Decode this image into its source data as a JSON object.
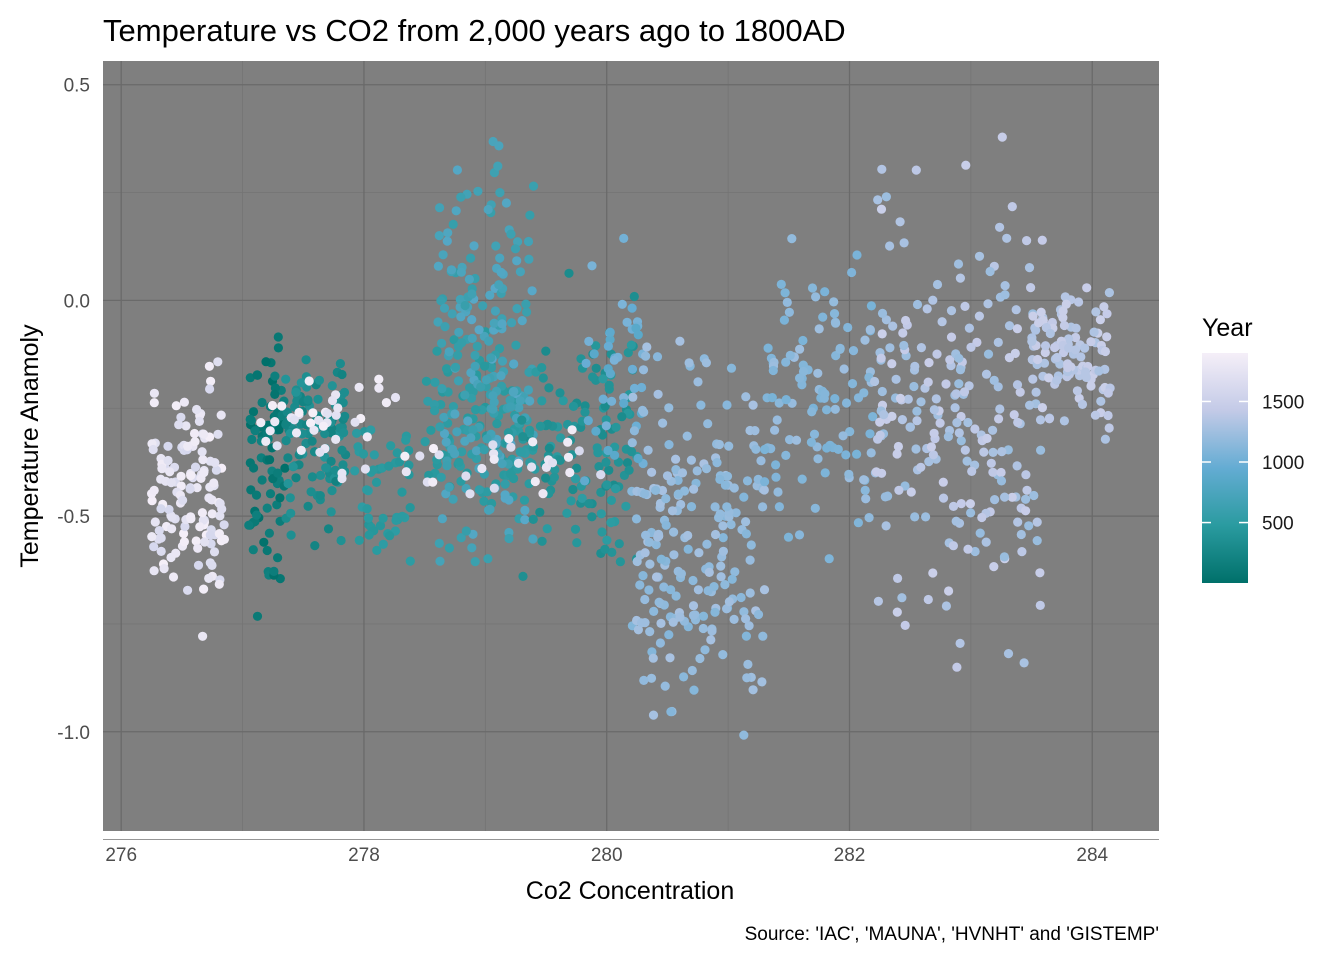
{
  "chart_data": {
    "type": "scatter",
    "title": "Temperature vs CO2 from 2,000 years ago to 1800AD",
    "xlabel": "Co2 Concentration",
    "ylabel": "Temperature Anamoly",
    "caption": "Source: 'IAC', 'MAUNA', 'HVNHT' and 'GISTEMP'",
    "xlim": [
      275.85,
      284.55
    ],
    "ylim": [
      -1.23,
      0.555
    ],
    "x_ticks": [
      276,
      278,
      280,
      282,
      284
    ],
    "x_tick_labels": [
      "276",
      "278",
      "280",
      "282",
      "284"
    ],
    "y_ticks": [
      0.5,
      0.0,
      -0.5,
      -1.0
    ],
    "y_tick_labels": [
      "0.5",
      "0.0",
      "-0.5",
      "-1.0"
    ],
    "grid": true,
    "panel_background": "#7f7f7f",
    "legend": {
      "title": "Year",
      "position": "right",
      "type": "colorbar",
      "range": [
        1,
        1900
      ],
      "breaks": [
        500,
        1000,
        1500
      ],
      "break_labels": [
        "500",
        "1000",
        "1500"
      ],
      "colors": [
        "#00706a",
        "#2a9ba0",
        "#64acd3",
        "#c3cae7",
        "#f5eff8"
      ]
    },
    "clusters": [
      {
        "year": [
          0,
          200
        ],
        "x": [
          277.05,
          277.35
        ],
        "y": [
          -0.9,
          0.1
        ],
        "count": 80
      },
      {
        "year": [
          200,
          420
        ],
        "x": [
          277.35,
          277.85
        ],
        "y": [
          -0.6,
          -0.05
        ],
        "count": 110
      },
      {
        "year": [
          420,
          520
        ],
        "x": [
          277.9,
          278.4
        ],
        "y": [
          -0.65,
          -0.2
        ],
        "count": 50
      },
      {
        "year": [
          430,
          560
        ],
        "x": [
          278.5,
          279.4
        ],
        "y": [
          -0.6,
          0.0
        ],
        "count": 120
      },
      {
        "year": [
          560,
          860
        ],
        "x": [
          278.6,
          279.4
        ],
        "y": [
          -0.75,
          0.46
        ],
        "count": 200
      },
      {
        "year": [
          300,
          500
        ],
        "x": [
          279.3,
          280.25
        ],
        "y": [
          -0.8,
          0.12
        ],
        "count": 130
      },
      {
        "year": [
          860,
          1100
        ],
        "x": [
          279.8,
          280.3
        ],
        "y": [
          -0.5,
          0.2
        ],
        "count": 40
      },
      {
        "year": [
          1100,
          1300
        ],
        "x": [
          280.2,
          281.3
        ],
        "y": [
          -1.17,
          0.05
        ],
        "count": 220
      },
      {
        "year": [
          1050,
          1250
        ],
        "x": [
          281.3,
          282.2
        ],
        "y": [
          -0.7,
          0.23
        ],
        "count": 110
      },
      {
        "year": [
          1200,
          1500
        ],
        "x": [
          282.2,
          283.6
        ],
        "y": [
          -0.98,
          0.47
        ],
        "count": 230
      },
      {
        "year": [
          1300,
          1500
        ],
        "x": [
          283.5,
          284.15
        ],
        "y": [
          -0.35,
          0.1
        ],
        "count": 110
      },
      {
        "year": [
          1600,
          1900
        ],
        "x": [
          276.25,
          276.85
        ],
        "y": [
          -0.8,
          -0.1
        ],
        "count": 140
      },
      {
        "year": [
          1700,
          1900
        ],
        "x": [
          277.1,
          278.3
        ],
        "y": [
          -0.45,
          -0.12
        ],
        "count": 40
      },
      {
        "year": [
          1600,
          1900
        ],
        "x": [
          278.3,
          280.0
        ],
        "y": [
          -0.5,
          -0.25
        ],
        "count": 30
      }
    ]
  }
}
